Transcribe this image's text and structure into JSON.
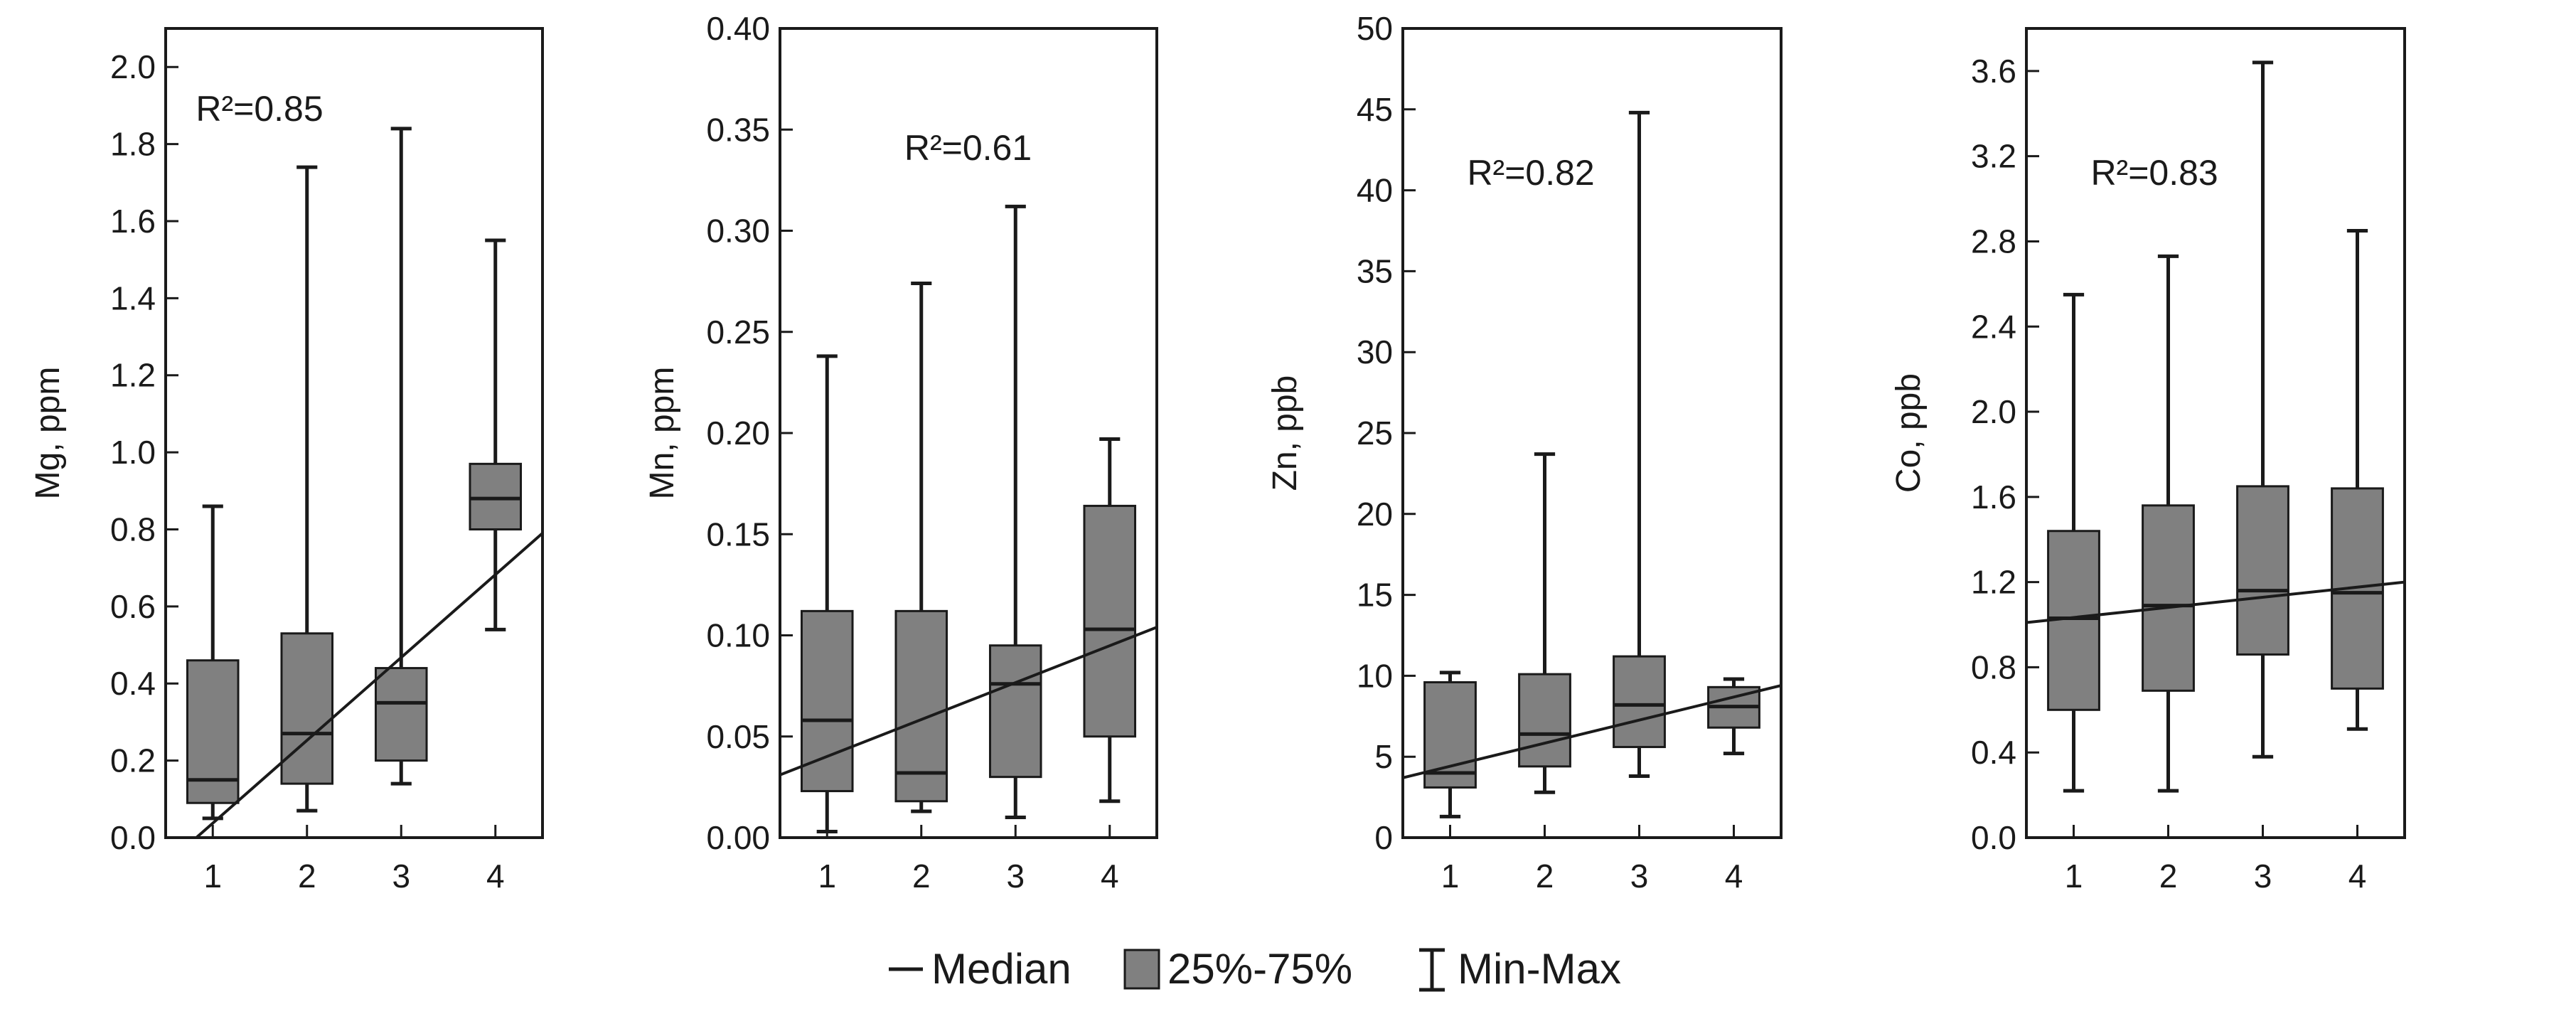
{
  "chart_data": [
    {
      "type": "box",
      "ylabel": "Mg, ppm",
      "ylim": [
        0,
        2.1
      ],
      "yticks": [
        "0.0",
        "0.2",
        "0.4",
        "0.6",
        "0.8",
        "1.0",
        "1.2",
        "1.4",
        "1.6",
        "1.8",
        "2.0"
      ],
      "categories": [
        "1",
        "2",
        "3",
        "4"
      ],
      "annotation": "R²=0.85",
      "boxes": [
        {
          "min": 0.05,
          "q1": 0.09,
          "median": 0.15,
          "q3": 0.46,
          "max": 0.86
        },
        {
          "min": 0.07,
          "q1": 0.14,
          "median": 0.27,
          "q3": 0.53,
          "max": 1.74
        },
        {
          "min": 0.14,
          "q1": 0.2,
          "median": 0.35,
          "q3": 0.44,
          "max": 1.84
        },
        {
          "min": 0.54,
          "q1": 0.8,
          "median": 0.88,
          "q3": 0.97,
          "max": 1.55
        }
      ],
      "trend": {
        "x0": 0.5,
        "y0": -0.07,
        "x1": 4.5,
        "y1": 0.79
      }
    },
    {
      "type": "box",
      "ylabel": "Mn, ppm",
      "ylim": [
        0,
        0.4
      ],
      "yticks": [
        "0.00",
        "0.05",
        "0.10",
        "0.15",
        "0.20",
        "0.25",
        "0.30",
        "0.35",
        "0.40"
      ],
      "categories": [
        "1",
        "2",
        "3",
        "4"
      ],
      "annotation": "R²=0.61",
      "boxes": [
        {
          "min": 0.003,
          "q1": 0.023,
          "median": 0.058,
          "q3": 0.112,
          "max": 0.238
        },
        {
          "min": 0.013,
          "q1": 0.018,
          "median": 0.032,
          "q3": 0.112,
          "max": 0.274
        },
        {
          "min": 0.01,
          "q1": 0.03,
          "median": 0.076,
          "q3": 0.095,
          "max": 0.312
        },
        {
          "min": 0.018,
          "q1": 0.05,
          "median": 0.103,
          "q3": 0.164,
          "max": 0.197
        }
      ],
      "trend": {
        "x0": 0.5,
        "y0": 0.031,
        "x1": 4.5,
        "y1": 0.104
      }
    },
    {
      "type": "box",
      "ylabel": "Zn, ppb",
      "ylim": [
        0,
        50
      ],
      "yticks": [
        "0",
        "5",
        "10",
        "15",
        "20",
        "25",
        "30",
        "35",
        "40",
        "45",
        "50"
      ],
      "categories": [
        "1",
        "2",
        "3",
        "4"
      ],
      "annotation": "R²=0.82",
      "boxes": [
        {
          "min": 1.3,
          "q1": 3.1,
          "median": 4.0,
          "q3": 9.6,
          "max": 10.2
        },
        {
          "min": 2.8,
          "q1": 4.4,
          "median": 6.4,
          "q3": 10.1,
          "max": 23.7
        },
        {
          "min": 3.8,
          "q1": 5.6,
          "median": 8.2,
          "q3": 11.2,
          "max": 44.8
        },
        {
          "min": 5.2,
          "q1": 6.8,
          "median": 8.1,
          "q3": 9.3,
          "max": 9.8
        }
      ],
      "trend": {
        "x0": 0.5,
        "y0": 3.7,
        "x1": 4.5,
        "y1": 9.4
      }
    },
    {
      "type": "box",
      "ylabel": "Co, ppb",
      "ylim": [
        0,
        3.8
      ],
      "yticks": [
        "0.0",
        "0.4",
        "0.8",
        "1.2",
        "1.6",
        "2.0",
        "2.4",
        "2.8",
        "3.2",
        "3.6"
      ],
      "categories": [
        "1",
        "2",
        "3",
        "4"
      ],
      "annotation": "R²=0.83",
      "boxes": [
        {
          "min": 0.22,
          "q1": 0.6,
          "median": 1.03,
          "q3": 1.44,
          "max": 2.55
        },
        {
          "min": 0.22,
          "q1": 0.69,
          "median": 1.09,
          "q3": 1.56,
          "max": 2.73
        },
        {
          "min": 0.38,
          "q1": 0.86,
          "median": 1.16,
          "q3": 1.65,
          "max": 3.64
        },
        {
          "min": 0.51,
          "q1": 0.7,
          "median": 1.15,
          "q3": 1.64,
          "max": 2.85
        }
      ],
      "trend": {
        "x0": 0.5,
        "y0": 1.01,
        "x1": 4.5,
        "y1": 1.2
      }
    }
  ],
  "legend": {
    "median_label": "Median",
    "box_label": "25%-75%",
    "whisker_label": "Min-Max"
  },
  "colors": {
    "box_fill": "#808080",
    "line": "#1a1a1a",
    "background": "#ffffff"
  }
}
